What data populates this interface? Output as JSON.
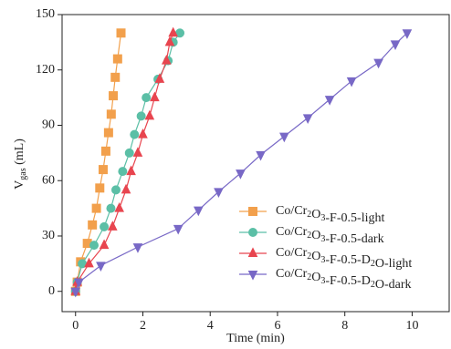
{
  "chart_data": {
    "type": "line",
    "xlabel": "Time (min)",
    "ylabel": "Vgas (mL)",
    "xlim": [
      -0.4,
      11.1
    ],
    "ylim": [
      -11,
      150
    ],
    "xticks": [
      0,
      2,
      4,
      6,
      8,
      10
    ],
    "yticks": [
      0,
      30,
      60,
      90,
      120,
      150
    ],
    "legend": "lower right",
    "series": [
      {
        "name": "Co/Cr2O3-F-0.5-light",
        "color": "#f2a04c",
        "marker": "square",
        "x": [
          0,
          0.05,
          0.15,
          0.35,
          0.5,
          0.62,
          0.72,
          0.82,
          0.9,
          0.98,
          1.06,
          1.12,
          1.18,
          1.25,
          1.35
        ],
        "values": [
          0,
          5,
          16,
          26,
          36,
          45,
          56,
          66,
          76,
          86,
          96,
          106,
          116,
          126,
          140
        ]
      },
      {
        "name": "Co/Cr2O3-F-0.5-dark",
        "color": "#5bbfa6",
        "marker": "circle",
        "x": [
          0,
          0.05,
          0.2,
          0.55,
          0.85,
          1.05,
          1.2,
          1.4,
          1.6,
          1.75,
          1.95,
          2.1,
          2.45,
          2.75,
          2.9,
          3.1
        ],
        "values": [
          0,
          5,
          15,
          25,
          35,
          45,
          55,
          65,
          75,
          85,
          95,
          105,
          115,
          125,
          135,
          140
        ]
      },
      {
        "name": "Co/Cr2O3-F-0.5-D2O-light",
        "color": "#e8454f",
        "marker": "triangle-up",
        "x": [
          0,
          0.05,
          0.4,
          0.85,
          1.1,
          1.3,
          1.5,
          1.65,
          1.85,
          2.0,
          2.2,
          2.35,
          2.5,
          2.7,
          2.8,
          2.9
        ],
        "values": [
          0,
          5,
          15,
          25,
          35,
          45,
          55,
          65,
          75,
          85,
          95,
          105,
          115,
          125,
          135,
          140
        ]
      },
      {
        "name": "Co/Cr2O3-F-0.5-D2O-dark",
        "color": "#7868c6",
        "marker": "triangle-down",
        "x": [
          0,
          0.1,
          0.75,
          1.85,
          3.05,
          3.65,
          4.25,
          4.9,
          5.5,
          6.2,
          6.9,
          7.55,
          8.2,
          9.0,
          9.5,
          9.85
        ],
        "values": [
          0,
          5,
          14,
          24,
          34,
          44,
          54,
          64,
          74,
          84,
          94,
          104,
          114,
          124,
          134,
          140
        ]
      }
    ]
  }
}
